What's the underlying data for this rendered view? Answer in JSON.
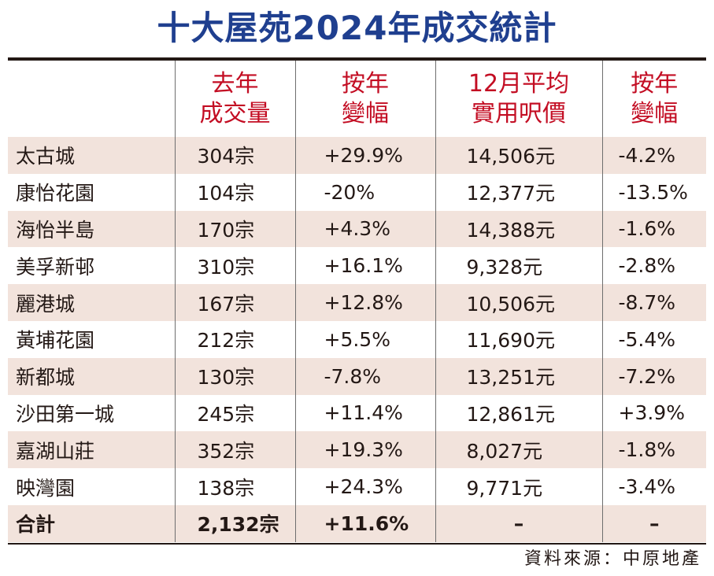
{
  "title": "十大屋苑2024年成交統計",
  "source": "資料來源：中原地產",
  "chart_data": {
    "type": "table",
    "columns": [
      {
        "lines": [
          "",
          ""
        ]
      },
      {
        "lines": [
          "去年",
          "成交量"
        ]
      },
      {
        "lines": [
          "按年",
          "變幅"
        ]
      },
      {
        "lines": [
          "12月平均",
          "實用呎價"
        ]
      },
      {
        "lines": [
          "按年",
          "變幅"
        ]
      }
    ],
    "rows": [
      [
        "太古城",
        "304宗",
        "+29.9%",
        "14,506元",
        "-4.2%"
      ],
      [
        "康怡花園",
        "104宗",
        "-20%",
        "12,377元",
        "-13.5%"
      ],
      [
        "海怡半島",
        "170宗",
        "+4.3%",
        "14,388元",
        "-1.6%"
      ],
      [
        "美孚新邨",
        "310宗",
        "+16.1%",
        "9,328元",
        "-2.8%"
      ],
      [
        "麗港城",
        "167宗",
        "+12.8%",
        "10,506元",
        "-8.7%"
      ],
      [
        "黃埔花園",
        "212宗",
        "+5.5%",
        "11,690元",
        "-5.4%"
      ],
      [
        "新都城",
        "130宗",
        "-7.8%",
        "13,251元",
        "-7.2%"
      ],
      [
        "沙田第一城",
        "245宗",
        "+11.4%",
        "12,861元",
        "+3.9%"
      ],
      [
        "嘉湖山莊",
        "352宗",
        "+19.3%",
        "8,027元",
        "-1.8%"
      ],
      [
        "映灣園",
        "138宗",
        "+24.3%",
        "9,771元",
        "-3.4%"
      ],
      [
        "合計",
        "2,132宗",
        "+11.6%",
        "–",
        "–"
      ]
    ]
  },
  "colors": {
    "title": "#1f3f8f",
    "header_text": "#c30d23",
    "row_shade": "#f2e3dc",
    "rule": "#231815"
  }
}
